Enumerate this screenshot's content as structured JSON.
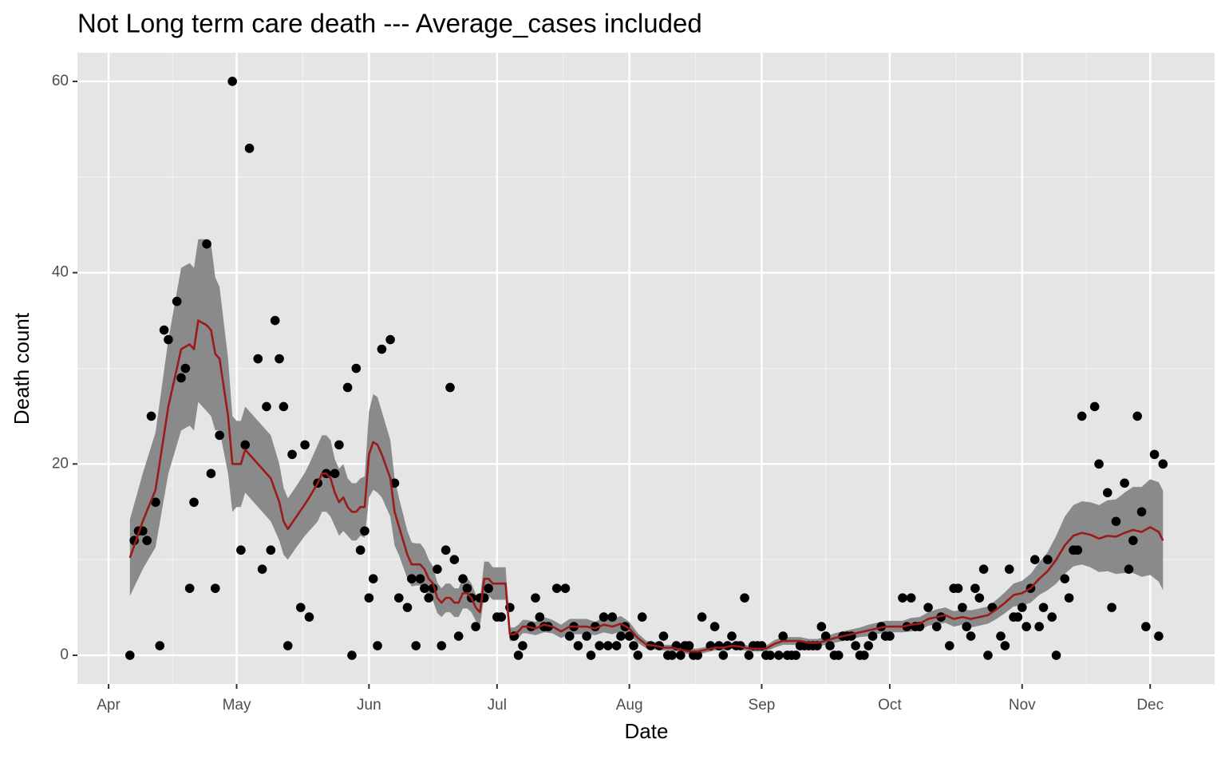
{
  "chart_data": {
    "type": "line",
    "title": "Not Long term care death --- Average_cases included",
    "x_label": "Date",
    "y_label": "Death count",
    "xlim": [
      -7.3,
      259.1
    ],
    "ylim": [
      -3,
      63
    ],
    "xticks": [
      {
        "value": 0,
        "label": "Apr"
      },
      {
        "value": 30,
        "label": "May"
      },
      {
        "value": 61,
        "label": "Jun"
      },
      {
        "value": 91,
        "label": "Jul"
      },
      {
        "value": 122,
        "label": "Aug"
      },
      {
        "value": 153,
        "label": "Sep"
      },
      {
        "value": 183,
        "label": "Oct"
      },
      {
        "value": 214,
        "label": "Nov"
      },
      {
        "value": 244,
        "label": "Dec"
      }
    ],
    "yticks": [
      0,
      20,
      40,
      60
    ],
    "grid": true,
    "series": [
      {
        "type": "ribbon",
        "color": "#8a8a8a",
        "x": [
          5,
          8,
          11,
          14,
          17,
          19,
          20,
          21,
          23,
          24,
          25,
          26,
          28,
          29,
          30,
          31,
          32,
          34,
          36,
          38,
          40,
          41,
          42,
          44,
          46,
          47,
          49,
          50,
          51,
          52,
          53,
          54,
          55,
          56,
          57,
          58,
          59,
          60,
          61,
          62,
          63,
          64,
          66,
          67,
          68,
          70,
          71,
          72,
          73,
          74,
          75,
          76,
          77,
          78,
          79,
          80,
          81,
          82,
          83,
          84,
          85,
          86,
          87,
          88,
          89,
          90,
          91,
          92,
          93,
          94,
          95,
          96,
          97,
          98,
          100,
          102,
          104,
          106,
          108,
          110,
          112,
          114,
          116,
          118,
          120,
          122,
          124,
          126,
          128,
          130,
          132,
          134,
          136,
          138,
          140,
          142,
          144,
          146,
          148,
          150,
          152,
          154,
          156,
          158,
          160,
          162,
          164,
          166,
          168,
          170,
          172,
          174,
          176,
          178,
          180,
          182,
          184,
          186,
          188,
          190,
          192,
          194,
          196,
          198,
          200,
          202,
          204,
          206,
          208,
          210,
          212,
          214,
          216,
          218,
          220,
          222,
          224,
          226,
          228,
          230,
          232,
          234,
          236,
          238,
          240,
          242,
          244,
          246,
          247
        ],
        "lower": [
          6.2,
          9,
          11.3,
          19,
          23.5,
          24,
          23.5,
          26.5,
          25.5,
          25,
          23.5,
          23.5,
          19,
          15,
          15.5,
          15.5,
          17,
          16,
          15,
          14,
          12,
          10.5,
          10,
          11.3,
          12.5,
          13,
          14,
          15,
          15,
          14.5,
          13.5,
          12.5,
          13,
          12.5,
          12,
          12,
          12.5,
          12.3,
          16.5,
          17.3,
          17,
          16.5,
          14.5,
          11.5,
          10.5,
          8,
          7.2,
          7.3,
          7.3,
          6.9,
          6,
          5.7,
          4.4,
          4,
          4.5,
          4.5,
          4,
          4,
          4.9,
          4.9,
          4.5,
          3.6,
          3.1,
          6.2,
          6.2,
          5.8,
          5.8,
          5.8,
          5.8,
          1.5,
          1.5,
          1.8,
          2.3,
          2.3,
          2.1,
          2.4,
          2.3,
          1.8,
          2.2,
          2.2,
          2.2,
          2.1,
          2.4,
          2.2,
          2.5,
          2.1,
          1.3,
          0.7,
          0.6,
          0.5,
          0.5,
          0.3,
          0.1,
          0.1,
          0.3,
          0.5,
          0.5,
          0.7,
          0.6,
          0.4,
          0.4,
          0.4,
          0.8,
          1.1,
          1.1,
          1.1,
          0.9,
          0.9,
          1.1,
          1.3,
          1.5,
          1.7,
          1.9,
          2,
          2.2,
          2.4,
          2.4,
          2.4,
          2.5,
          2.6,
          3.1,
          3.2,
          3.4,
          3,
          3.2,
          2.9,
          3.1,
          3.3,
          3.8,
          4.4,
          5.1,
          5.2,
          5.5,
          6.3,
          6.8,
          7.5,
          8.5,
          9.3,
          9.5,
          9.2,
          8.7,
          8.8,
          8.5,
          8.6,
          8.6,
          8.2,
          8.4,
          7.7,
          6.8
        ],
        "upper": [
          14.2,
          19,
          23.3,
          33,
          40.5,
          41,
          40.5,
          43.5,
          43.5,
          43,
          39.5,
          38.5,
          31,
          25,
          24.5,
          24.5,
          26,
          25,
          24,
          23,
          20,
          17.5,
          16.4,
          17.7,
          19.1,
          20,
          22,
          23,
          23,
          22.5,
          20.5,
          19.5,
          20,
          18.5,
          18,
          18,
          18.5,
          18.7,
          25.5,
          27.3,
          27,
          25.5,
          22.5,
          18.5,
          16.5,
          13,
          11.8,
          11.7,
          11.7,
          11.1,
          10,
          9.3,
          7.6,
          7,
          7.5,
          7.5,
          7,
          7,
          8.1,
          8.1,
          7.5,
          6.4,
          5.9,
          9.8,
          9.8,
          9.2,
          9.2,
          9.2,
          9.2,
          2.9,
          2.9,
          3.2,
          3.7,
          3.7,
          3.5,
          4,
          3.7,
          3.2,
          3.8,
          3.8,
          3.8,
          3.5,
          4,
          3.8,
          4.1,
          3.5,
          2.3,
          1.5,
          1.4,
          1.1,
          1.1,
          0.9,
          0.7,
          0.7,
          0.9,
          1.1,
          1.1,
          1.3,
          1.2,
          1,
          1,
          1,
          1.6,
          1.9,
          1.9,
          1.9,
          1.7,
          1.7,
          1.9,
          2.3,
          2.5,
          2.7,
          2.9,
          3.2,
          3.4,
          3.6,
          3.6,
          3.6,
          3.9,
          4,
          4.5,
          4.8,
          5,
          4.6,
          4.8,
          4.7,
          4.9,
          5.1,
          5.8,
          6.6,
          7.5,
          7.8,
          8.5,
          9.7,
          10.8,
          12.5,
          14.5,
          15.7,
          16.1,
          16,
          15.7,
          16.2,
          16.3,
          17,
          17.6,
          17.6,
          18.4,
          18.1,
          17.2
        ]
      },
      {
        "type": "scatter",
        "color": "#000000",
        "x": [
          5,
          6,
          7,
          8,
          9,
          10,
          11,
          12,
          13,
          14,
          16,
          17,
          18,
          19,
          20,
          23,
          24,
          25,
          26,
          29,
          31,
          32,
          33,
          35,
          36,
          37,
          38,
          39,
          40,
          41,
          42,
          43,
          45,
          46,
          47,
          49,
          51,
          53,
          54,
          56,
          57,
          58,
          59,
          60,
          61,
          62,
          63,
          64,
          66,
          67,
          68,
          70,
          71,
          72,
          73,
          74,
          75,
          76,
          77,
          78,
          79,
          80,
          81,
          82,
          83,
          84,
          85,
          86,
          87,
          88,
          89,
          91,
          92,
          94,
          95,
          96,
          97,
          99,
          100,
          101,
          102,
          103,
          105,
          107,
          108,
          109,
          110,
          112,
          113,
          114,
          115,
          116,
          117,
          118,
          119,
          120,
          121,
          122,
          123,
          124,
          125,
          127,
          129,
          130,
          131,
          132,
          133,
          134,
          135,
          136,
          137,
          138,
          139,
          141,
          142,
          143,
          144,
          145,
          146,
          147,
          148,
          149,
          150,
          151,
          152,
          153,
          154,
          155,
          157,
          158,
          159,
          160,
          161,
          162,
          163,
          164,
          165,
          166,
          167,
          168,
          169,
          170,
          171,
          172,
          173,
          174,
          175,
          176,
          177,
          178,
          179,
          181,
          182,
          183,
          186,
          187,
          188,
          189,
          190,
          192,
          194,
          195,
          197,
          198,
          199,
          200,
          201,
          202,
          203,
          204,
          205,
          206,
          207,
          209,
          210,
          211,
          212,
          213,
          214,
          215,
          216,
          217,
          218,
          219,
          220,
          221,
          222,
          224,
          225,
          226,
          227,
          228,
          231,
          232,
          234,
          235,
          236,
          238,
          239,
          240,
          241,
          242,
          243,
          245,
          246,
          247
        ],
        "values": [
          0,
          12,
          13,
          13,
          12,
          25,
          16,
          1,
          34,
          33,
          37,
          29,
          30,
          7,
          16,
          43,
          19,
          7,
          23,
          60,
          11,
          22,
          53,
          31,
          9,
          26,
          11,
          35,
          31,
          26,
          1,
          21,
          5,
          22,
          4,
          18,
          19,
          19,
          22,
          28,
          0,
          30,
          11,
          13,
          6,
          8,
          1,
          32,
          33,
          18,
          6,
          5,
          8,
          1,
          8,
          7,
          6,
          7,
          9,
          1,
          11,
          28,
          10,
          2,
          8,
          7,
          6,
          3,
          6,
          6,
          7,
          4,
          4,
          5,
          2,
          0,
          1,
          3,
          6,
          4,
          3,
          3,
          7,
          7,
          2,
          3,
          1,
          2,
          0,
          3,
          1,
          4,
          1,
          4,
          1,
          2,
          3,
          2,
          1,
          0,
          4,
          1,
          1,
          2,
          0,
          0,
          1,
          0,
          1,
          1,
          0,
          0,
          4,
          1,
          3,
          1,
          0,
          1,
          2,
          1,
          1,
          6,
          0,
          1,
          1,
          1,
          0,
          0,
          0,
          2,
          0,
          0,
          0,
          1,
          1,
          1,
          1,
          1,
          3,
          2,
          1,
          0,
          0,
          2,
          2,
          2,
          1,
          0,
          0,
          1,
          2,
          3,
          2,
          2,
          6,
          3,
          6,
          3,
          3,
          5,
          3,
          4,
          1,
          7,
          7,
          5,
          3,
          2,
          7,
          6,
          9,
          0,
          5,
          2,
          1,
          9,
          4,
          4,
          5,
          3,
          7,
          10,
          3,
          5,
          10,
          4,
          0,
          8,
          6,
          11,
          11,
          25,
          26,
          20,
          17,
          5,
          14,
          18,
          9,
          12,
          25,
          15,
          3,
          21,
          2,
          20
        ]
      },
      {
        "type": "line",
        "color": "#9b1b1b",
        "x": [
          5,
          8,
          11,
          14,
          17,
          19,
          20,
          21,
          23,
          24,
          25,
          26,
          28,
          29,
          30,
          31,
          32,
          34,
          36,
          38,
          40,
          41,
          42,
          44,
          46,
          47,
          49,
          50,
          51,
          52,
          53,
          54,
          55,
          56,
          57,
          58,
          59,
          60,
          61,
          62,
          63,
          64,
          66,
          67,
          68,
          70,
          71,
          72,
          73,
          74,
          75,
          76,
          77,
          78,
          79,
          80,
          81,
          82,
          83,
          84,
          85,
          86,
          87,
          88,
          89,
          90,
          91,
          92,
          93,
          94,
          95,
          96,
          97,
          98,
          100,
          102,
          104,
          106,
          108,
          110,
          112,
          114,
          116,
          118,
          120,
          122,
          124,
          126,
          128,
          130,
          132,
          134,
          136,
          138,
          140,
          142,
          144,
          146,
          148,
          150,
          152,
          154,
          156,
          158,
          160,
          162,
          164,
          166,
          168,
          170,
          172,
          174,
          176,
          178,
          180,
          182,
          184,
          186,
          188,
          190,
          192,
          194,
          196,
          198,
          200,
          202,
          204,
          206,
          208,
          210,
          212,
          214,
          216,
          218,
          220,
          222,
          224,
          226,
          228,
          230,
          232,
          234,
          236,
          238,
          240,
          242,
          244,
          246,
          247
        ],
        "values": [
          10.2,
          14,
          17.3,
          26,
          32,
          32.5,
          32,
          35,
          34.5,
          34,
          31.5,
          31,
          25,
          20,
          20,
          20,
          21.5,
          20.5,
          19.5,
          18.5,
          16,
          14,
          13.2,
          14.5,
          15.8,
          16.5,
          18,
          19,
          19,
          18.5,
          17,
          16,
          16.5,
          15.5,
          15,
          15,
          15.5,
          15.5,
          21,
          22.3,
          22,
          21,
          18.5,
          15,
          13.5,
          10.5,
          9.5,
          9.5,
          9.5,
          9,
          8,
          7.5,
          6,
          5.5,
          6,
          6,
          5.5,
          5.5,
          6.5,
          6.5,
          6,
          5,
          4.5,
          8,
          8,
          7.5,
          7.5,
          7.5,
          7.5,
          2.2,
          2.2,
          2.5,
          3,
          3,
          2.8,
          3.2,
          3,
          2.5,
          3,
          3,
          3,
          2.8,
          3.2,
          3,
          3.3,
          2.8,
          1.8,
          1.1,
          1,
          0.8,
          0.8,
          0.6,
          0.4,
          0.4,
          0.6,
          0.8,
          0.8,
          1,
          0.9,
          0.7,
          0.7,
          0.7,
          1.2,
          1.5,
          1.5,
          1.5,
          1.3,
          1.3,
          1.5,
          1.8,
          2,
          2.2,
          2.4,
          2.6,
          2.8,
          3,
          3,
          3,
          3.2,
          3.3,
          3.8,
          4,
          4.2,
          3.8,
          4,
          3.8,
          4,
          4.2,
          4.8,
          5.5,
          6.3,
          6.5,
          7,
          8,
          8.8,
          10,
          11.5,
          12.5,
          12.8,
          12.6,
          12.2,
          12.5,
          12.4,
          12.8,
          13.1,
          12.9,
          13.4,
          12.9,
          12
        ]
      }
    ]
  }
}
